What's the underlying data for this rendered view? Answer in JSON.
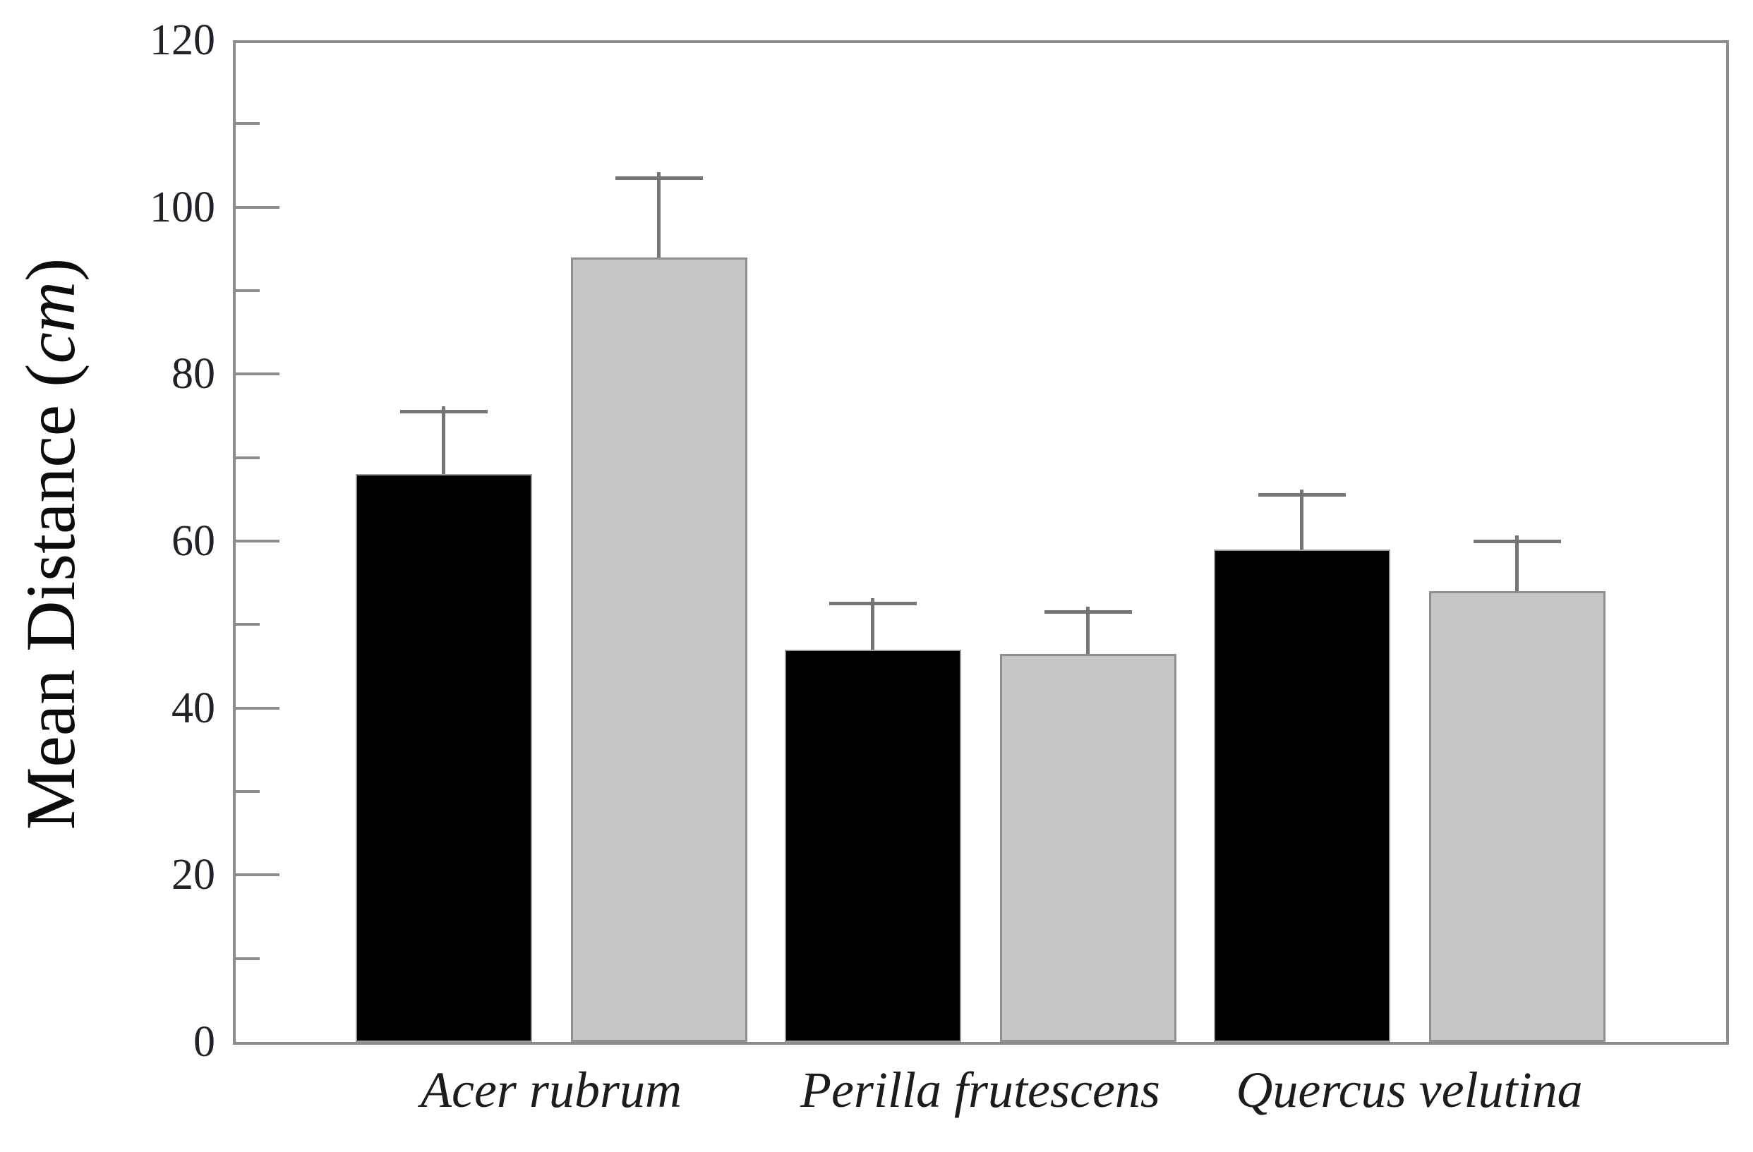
{
  "chart_data": {
    "type": "bar",
    "title": "",
    "ylabel": "Mean Distance (cm)",
    "ylabel_parts": {
      "prefix": "Mean Distance (",
      "unit_italic": "cm",
      "suffix": ")"
    },
    "categories": [
      "Acer rubrum",
      "Perilla frutescens",
      "Quercus velutina"
    ],
    "series": [
      {
        "name": "black-bars",
        "fill": "#000000",
        "values": [
          68,
          47,
          59
        ],
        "errors_plus": [
          7.5,
          5.5,
          6.5
        ]
      },
      {
        "name": "gray-bars",
        "fill": "#c6c6c6",
        "values": [
          94,
          46.5,
          54
        ],
        "errors_plus": [
          9.5,
          5,
          6
        ]
      }
    ],
    "ylim": [
      0,
      120
    ],
    "yticks_major": [
      0,
      20,
      40,
      60,
      80,
      100,
      120
    ],
    "yticks_minor": [
      10,
      30,
      50,
      70,
      90,
      110
    ],
    "grid": false,
    "legend": "none",
    "error_bars": "upper-only",
    "colors": {
      "frame": "#8d8d8d",
      "error_bar": "#757575",
      "black_fill": "#000000",
      "gray_fill": "#c6c6c6",
      "bar_border": "#8f8f8f",
      "text": "#1c1c1f"
    }
  }
}
